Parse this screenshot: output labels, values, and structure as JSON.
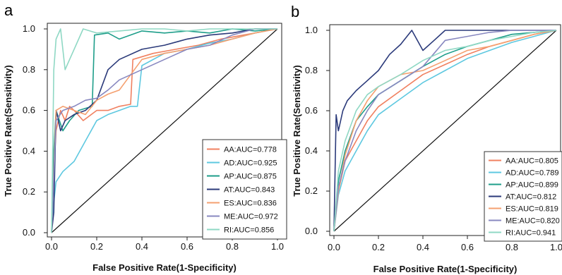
{
  "chart_data": [
    {
      "panel_label": "a",
      "type": "line",
      "xlabel": "False Positive Rate(1-Specificity)",
      "ylabel": "True Positive Rate(Sensitivity)",
      "xlim": [
        0,
        1
      ],
      "ylim": [
        0,
        1
      ],
      "xticks": [
        "0.0",
        "0.2",
        "0.4",
        "0.6",
        "0.8",
        "1.0"
      ],
      "yticks": [
        "0.0",
        "0.2",
        "0.4",
        "0.6",
        "0.8",
        "1.0"
      ],
      "grid": false,
      "legend": "bottom-right",
      "diagonal_reference": true,
      "series": [
        {
          "name": "AA:AUC=0.778",
          "color": "#F08060",
          "points": [
            [
              0,
              0
            ],
            [
              0.01,
              0.3
            ],
            [
              0.02,
              0.5
            ],
            [
              0.04,
              0.6
            ],
            [
              0.06,
              0.55
            ],
            [
              0.08,
              0.62
            ],
            [
              0.1,
              0.6
            ],
            [
              0.14,
              0.55
            ],
            [
              0.2,
              0.6
            ],
            [
              0.25,
              0.6
            ],
            [
              0.3,
              0.62
            ],
            [
              0.35,
              0.63
            ],
            [
              0.36,
              0.85
            ],
            [
              0.45,
              0.88
            ],
            [
              0.55,
              0.9
            ],
            [
              0.65,
              0.92
            ],
            [
              0.75,
              0.95
            ],
            [
              0.85,
              0.97
            ],
            [
              0.95,
              0.99
            ],
            [
              1,
              1
            ]
          ]
        },
        {
          "name": "AD:AUC=0.925",
          "color": "#5EC8E0",
          "points": [
            [
              0,
              0
            ],
            [
              0.01,
              0.15
            ],
            [
              0.02,
              0.25
            ],
            [
              0.05,
              0.3
            ],
            [
              0.1,
              0.35
            ],
            [
              0.15,
              0.45
            ],
            [
              0.2,
              0.55
            ],
            [
              0.25,
              0.58
            ],
            [
              0.3,
              0.6
            ],
            [
              0.35,
              0.62
            ],
            [
              0.38,
              0.62
            ],
            [
              0.4,
              0.82
            ],
            [
              0.5,
              0.88
            ],
            [
              0.6,
              0.9
            ],
            [
              0.7,
              0.93
            ],
            [
              0.8,
              0.95
            ],
            [
              0.9,
              0.98
            ],
            [
              1,
              1
            ]
          ]
        },
        {
          "name": "AP:AUC=0.875",
          "color": "#1E9E8A",
          "points": [
            [
              0,
              0
            ],
            [
              0.01,
              0.4
            ],
            [
              0.02,
              0.6
            ],
            [
              0.05,
              0.5
            ],
            [
              0.08,
              0.55
            ],
            [
              0.12,
              0.6
            ],
            [
              0.18,
              0.62
            ],
            [
              0.19,
              0.97
            ],
            [
              0.25,
              0.98
            ],
            [
              0.3,
              0.95
            ],
            [
              0.4,
              0.99
            ],
            [
              0.5,
              0.98
            ],
            [
              0.6,
              0.99
            ],
            [
              0.7,
              0.98
            ],
            [
              0.8,
              1
            ],
            [
              0.9,
              0.99
            ],
            [
              1,
              1
            ]
          ]
        },
        {
          "name": "AT:AUC=0.843",
          "color": "#2B3A7A",
          "points": [
            [
              0,
              0
            ],
            [
              0.01,
              0.1
            ],
            [
              0.02,
              0.6
            ],
            [
              0.04,
              0.5
            ],
            [
              0.06,
              0.55
            ],
            [
              0.1,
              0.58
            ],
            [
              0.15,
              0.6
            ],
            [
              0.2,
              0.65
            ],
            [
              0.25,
              0.8
            ],
            [
              0.3,
              0.85
            ],
            [
              0.4,
              0.9
            ],
            [
              0.5,
              0.92
            ],
            [
              0.6,
              0.95
            ],
            [
              0.7,
              0.97
            ],
            [
              0.8,
              0.98
            ],
            [
              0.9,
              1
            ],
            [
              1,
              1
            ]
          ]
        },
        {
          "name": "ES:AUC=0.836",
          "color": "#F5A070",
          "points": [
            [
              0,
              0
            ],
            [
              0.02,
              0.6
            ],
            [
              0.05,
              0.62
            ],
            [
              0.1,
              0.6
            ],
            [
              0.15,
              0.58
            ],
            [
              0.2,
              0.65
            ],
            [
              0.25,
              0.68
            ],
            [
              0.3,
              0.7
            ],
            [
              0.4,
              0.85
            ],
            [
              0.5,
              0.88
            ],
            [
              0.6,
              0.9
            ],
            [
              0.7,
              0.92
            ],
            [
              0.8,
              0.95
            ],
            [
              0.9,
              0.98
            ],
            [
              1,
              1
            ]
          ]
        },
        {
          "name": "ME:AUC=0.972",
          "color": "#8888C0",
          "points": [
            [
              0,
              0
            ],
            [
              0.02,
              0.55
            ],
            [
              0.05,
              0.6
            ],
            [
              0.1,
              0.62
            ],
            [
              0.15,
              0.65
            ],
            [
              0.2,
              0.66
            ],
            [
              0.25,
              0.7
            ],
            [
              0.3,
              0.75
            ],
            [
              0.4,
              0.8
            ],
            [
              0.5,
              0.85
            ],
            [
              0.6,
              0.9
            ],
            [
              0.7,
              0.92
            ],
            [
              0.8,
              0.97
            ],
            [
              0.9,
              1
            ],
            [
              1,
              1
            ]
          ]
        },
        {
          "name": "RI:AUC=0.856",
          "color": "#8FD8C4",
          "points": [
            [
              0,
              0
            ],
            [
              0.01,
              0.8
            ],
            [
              0.02,
              0.95
            ],
            [
              0.04,
              1
            ],
            [
              0.06,
              0.8
            ],
            [
              0.08,
              0.85
            ],
            [
              0.1,
              0.9
            ],
            [
              0.14,
              1
            ],
            [
              0.2,
              0.98
            ],
            [
              0.3,
              0.99
            ],
            [
              0.4,
              1
            ],
            [
              0.5,
              1
            ],
            [
              0.6,
              0.99
            ],
            [
              0.7,
              1
            ],
            [
              0.8,
              1
            ],
            [
              0.9,
              1
            ],
            [
              1,
              1
            ]
          ]
        }
      ]
    },
    {
      "panel_label": "b",
      "type": "line",
      "xlabel": "False Positive Rate(1-Specificity)",
      "ylabel": "True Positive Rate(Sensitivity)",
      "xlim": [
        0,
        1
      ],
      "ylim": [
        0,
        1
      ],
      "xticks": [
        "0.0",
        "0.2",
        "0.4",
        "0.6",
        "0.8",
        "1.0"
      ],
      "yticks": [
        "0.0",
        "0.2",
        "0.4",
        "0.6",
        "0.8",
        "1.0"
      ],
      "grid": false,
      "legend": "bottom-right",
      "diagonal_reference": true,
      "series": [
        {
          "name": "AA:AUC=0.805",
          "color": "#F08060",
          "points": [
            [
              0,
              0
            ],
            [
              0.02,
              0.2
            ],
            [
              0.05,
              0.35
            ],
            [
              0.1,
              0.45
            ],
            [
              0.15,
              0.55
            ],
            [
              0.2,
              0.62
            ],
            [
              0.3,
              0.7
            ],
            [
              0.4,
              0.78
            ],
            [
              0.5,
              0.83
            ],
            [
              0.6,
              0.88
            ],
            [
              0.7,
              0.92
            ],
            [
              0.8,
              0.95
            ],
            [
              0.9,
              0.98
            ],
            [
              1,
              1
            ]
          ]
        },
        {
          "name": "AD:AUC=0.789",
          "color": "#5EC8E0",
          "points": [
            [
              0,
              0
            ],
            [
              0.02,
              0.18
            ],
            [
              0.05,
              0.3
            ],
            [
              0.1,
              0.4
            ],
            [
              0.15,
              0.5
            ],
            [
              0.2,
              0.58
            ],
            [
              0.3,
              0.66
            ],
            [
              0.4,
              0.74
            ],
            [
              0.5,
              0.8
            ],
            [
              0.6,
              0.86
            ],
            [
              0.7,
              0.9
            ],
            [
              0.8,
              0.94
            ],
            [
              0.9,
              0.97
            ],
            [
              1,
              1
            ]
          ]
        },
        {
          "name": "AP:AUC=0.899",
          "color": "#1E9E8A",
          "points": [
            [
              0,
              0
            ],
            [
              0.02,
              0.25
            ],
            [
              0.05,
              0.4
            ],
            [
              0.1,
              0.55
            ],
            [
              0.15,
              0.62
            ],
            [
              0.2,
              0.68
            ],
            [
              0.3,
              0.75
            ],
            [
              0.4,
              0.82
            ],
            [
              0.5,
              0.88
            ],
            [
              0.6,
              0.92
            ],
            [
              0.7,
              0.95
            ],
            [
              0.8,
              0.98
            ],
            [
              0.9,
              0.99
            ],
            [
              1,
              1
            ]
          ]
        },
        {
          "name": "AT:AUC=0.812",
          "color": "#2B3A7A",
          "points": [
            [
              0,
              0
            ],
            [
              0.01,
              0.58
            ],
            [
              0.02,
              0.5
            ],
            [
              0.04,
              0.6
            ],
            [
              0.06,
              0.65
            ],
            [
              0.1,
              0.7
            ],
            [
              0.15,
              0.75
            ],
            [
              0.2,
              0.8
            ],
            [
              0.25,
              0.88
            ],
            [
              0.3,
              0.93
            ],
            [
              0.35,
              1
            ],
            [
              0.4,
              0.9
            ],
            [
              0.45,
              0.95
            ],
            [
              0.5,
              1
            ],
            [
              0.6,
              1
            ],
            [
              0.7,
              1
            ],
            [
              0.8,
              1
            ],
            [
              0.9,
              1
            ],
            [
              1,
              1
            ]
          ]
        },
        {
          "name": "ES:AUC=0.819",
          "color": "#F5A070",
          "points": [
            [
              0,
              0
            ],
            [
              0.02,
              0.2
            ],
            [
              0.05,
              0.38
            ],
            [
              0.1,
              0.55
            ],
            [
              0.15,
              0.65
            ],
            [
              0.2,
              0.72
            ],
            [
              0.3,
              0.78
            ],
            [
              0.4,
              0.8
            ],
            [
              0.5,
              0.85
            ],
            [
              0.6,
              0.9
            ],
            [
              0.7,
              0.92
            ],
            [
              0.8,
              0.95
            ],
            [
              0.9,
              0.98
            ],
            [
              1,
              1
            ]
          ]
        },
        {
          "name": "ME:AUC=0.820",
          "color": "#8888C0",
          "points": [
            [
              0,
              0
            ],
            [
              0.02,
              0.22
            ],
            [
              0.05,
              0.35
            ],
            [
              0.1,
              0.5
            ],
            [
              0.15,
              0.6
            ],
            [
              0.2,
              0.68
            ],
            [
              0.3,
              0.75
            ],
            [
              0.4,
              0.82
            ],
            [
              0.5,
              0.95
            ],
            [
              0.6,
              0.97
            ],
            [
              0.7,
              0.99
            ],
            [
              0.8,
              1
            ],
            [
              0.9,
              1
            ],
            [
              1,
              1
            ]
          ]
        },
        {
          "name": "RI:AUC=0.941",
          "color": "#8FD8C4",
          "points": [
            [
              0,
              0
            ],
            [
              0.02,
              0.3
            ],
            [
              0.05,
              0.45
            ],
            [
              0.1,
              0.6
            ],
            [
              0.15,
              0.68
            ],
            [
              0.2,
              0.72
            ],
            [
              0.3,
              0.78
            ],
            [
              0.4,
              0.85
            ],
            [
              0.5,
              0.9
            ],
            [
              0.6,
              0.92
            ],
            [
              0.7,
              0.95
            ],
            [
              0.8,
              0.97
            ],
            [
              0.9,
              0.99
            ],
            [
              1,
              1
            ]
          ]
        }
      ]
    }
  ]
}
